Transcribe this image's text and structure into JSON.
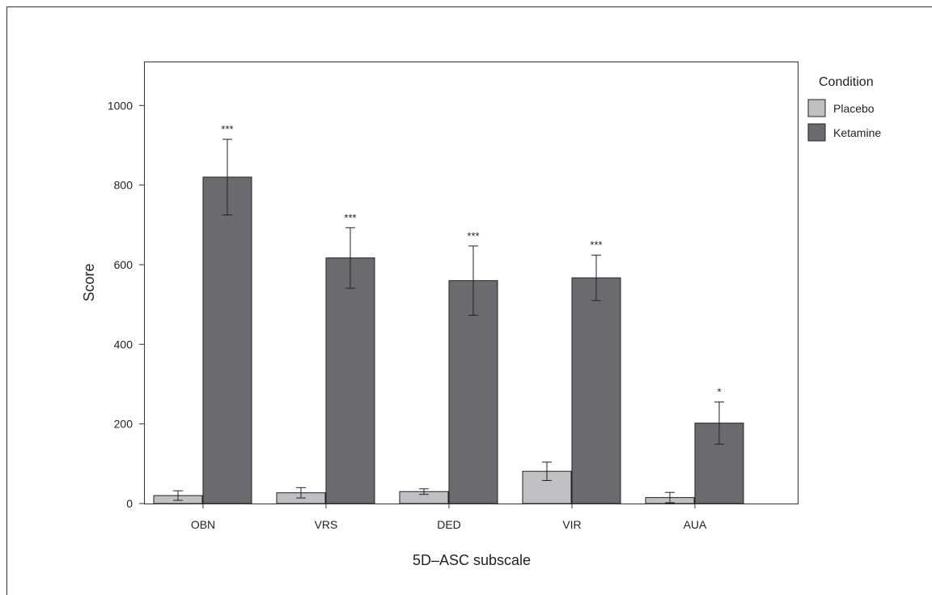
{
  "chart_data": {
    "type": "bar",
    "title": "",
    "xlabel": "5D–ASC subscale",
    "ylabel": "Score",
    "ylim": [
      0,
      1100
    ],
    "yticks": [
      0,
      200,
      400,
      600,
      800,
      1000
    ],
    "grid": false,
    "legend": {
      "title": "Condition",
      "placement": "right"
    },
    "categories": [
      "OBN",
      "VRS",
      "DED",
      "VIR",
      "AUA"
    ],
    "series": [
      {
        "name": "Placebo",
        "color": "#c0c0c3",
        "values": [
          20,
          27,
          30,
          81,
          15
        ],
        "error": [
          12,
          13,
          7,
          23,
          13
        ],
        "significance": [
          "",
          "",
          "",
          "",
          ""
        ]
      },
      {
        "name": "Ketamine",
        "color": "#6b6b6f",
        "values": [
          820,
          617,
          560,
          567,
          202
        ],
        "error": [
          95,
          76,
          87,
          57,
          53
        ],
        "significance": [
          "***",
          "***",
          "***",
          "***",
          "*"
        ]
      }
    ]
  }
}
